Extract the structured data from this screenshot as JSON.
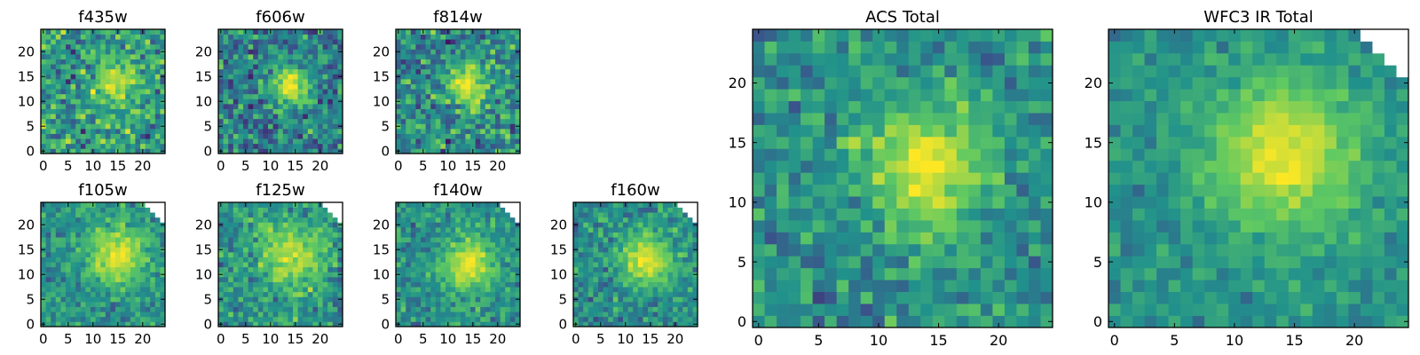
{
  "colors": {
    "background": "#ffffff",
    "axes": "#000000",
    "missing_pixel": "#ffffff",
    "colormap": "viridis",
    "colormap_anchors": [
      "#440154",
      "#3b528b",
      "#21918c",
      "#5ec962",
      "#fde725"
    ]
  },
  "chart_data": [
    {
      "type": "heatmap",
      "title": "f435w",
      "xlabel": "",
      "ylabel": "",
      "grid": false,
      "xlim": [
        0,
        24
      ],
      "ylim": [
        0,
        24
      ],
      "xticks": [
        0,
        5,
        10,
        15,
        20
      ],
      "yticks": [
        0,
        5,
        10,
        15,
        20
      ],
      "image_size": [
        25,
        25
      ],
      "peak": [
        15,
        14
      ],
      "peak_level": 0.95,
      "peak_spread": 3.0,
      "background_level": 0.55,
      "noise_level": 0.32,
      "mask_top_right": 0
    },
    {
      "type": "heatmap",
      "title": "f606w",
      "xlabel": "",
      "ylabel": "",
      "grid": false,
      "xlim": [
        0,
        24
      ],
      "ylim": [
        0,
        24
      ],
      "xticks": [
        0,
        5,
        10,
        15,
        20
      ],
      "yticks": [
        0,
        5,
        10,
        15,
        20
      ],
      "image_size": [
        25,
        25
      ],
      "peak": [
        14,
        13
      ],
      "peak_level": 0.97,
      "peak_spread": 2.8,
      "background_level": 0.42,
      "noise_level": 0.3,
      "mask_top_right": 0
    },
    {
      "type": "heatmap",
      "title": "f814w",
      "xlabel": "",
      "ylabel": "",
      "grid": false,
      "xlim": [
        0,
        24
      ],
      "ylim": [
        0,
        24
      ],
      "xticks": [
        0,
        5,
        10,
        15,
        20
      ],
      "yticks": [
        0,
        5,
        10,
        15,
        20
      ],
      "image_size": [
        25,
        25
      ],
      "peak": [
        14,
        13
      ],
      "peak_level": 0.95,
      "peak_spread": 3.0,
      "background_level": 0.48,
      "noise_level": 0.32,
      "mask_top_right": 0
    },
    {
      "type": "heatmap",
      "title": "f105w",
      "xlabel": "",
      "ylabel": "",
      "grid": false,
      "xlim": [
        0,
        24
      ],
      "ylim": [
        0,
        24
      ],
      "xticks": [
        0,
        5,
        10,
        15,
        20
      ],
      "yticks": [
        0,
        5,
        10,
        15,
        20
      ],
      "image_size": [
        25,
        25
      ],
      "peak": [
        15,
        14
      ],
      "peak_level": 0.97,
      "peak_spread": 4.2,
      "background_level": 0.5,
      "noise_level": 0.2,
      "mask_top_right": 4
    },
    {
      "type": "heatmap",
      "title": "f125w",
      "xlabel": "",
      "ylabel": "",
      "grid": false,
      "xlim": [
        0,
        24
      ],
      "ylim": [
        0,
        24
      ],
      "xticks": [
        0,
        5,
        10,
        15,
        20
      ],
      "yticks": [
        0,
        5,
        10,
        15,
        20
      ],
      "image_size": [
        25,
        25
      ],
      "peak": [
        14,
        14
      ],
      "peak_level": 0.88,
      "peak_spread": 5.0,
      "background_level": 0.5,
      "noise_level": 0.26,
      "mask_top_right": 4
    },
    {
      "type": "heatmap",
      "title": "f140w",
      "xlabel": "",
      "ylabel": "",
      "grid": false,
      "xlim": [
        0,
        24
      ],
      "ylim": [
        0,
        24
      ],
      "xticks": [
        0,
        5,
        10,
        15,
        20
      ],
      "yticks": [
        0,
        5,
        10,
        15,
        20
      ],
      "image_size": [
        25,
        25
      ],
      "peak": [
        14,
        12
      ],
      "peak_level": 0.97,
      "peak_spread": 3.8,
      "background_level": 0.5,
      "noise_level": 0.2,
      "mask_top_right": 4
    },
    {
      "type": "heatmap",
      "title": "f160w",
      "xlabel": "",
      "ylabel": "",
      "grid": false,
      "xlim": [
        0,
        24
      ],
      "ylim": [
        0,
        24
      ],
      "xticks": [
        0,
        5,
        10,
        15,
        20
      ],
      "yticks": [
        0,
        5,
        10,
        15,
        20
      ],
      "image_size": [
        25,
        25
      ],
      "peak": [
        14,
        13
      ],
      "peak_level": 0.95,
      "peak_spread": 3.8,
      "background_level": 0.48,
      "noise_level": 0.22,
      "mask_top_right": 4
    },
    {
      "type": "heatmap",
      "title": "ACS Total",
      "xlabel": "",
      "ylabel": "",
      "grid": false,
      "xlim": [
        0,
        24
      ],
      "ylim": [
        0,
        24
      ],
      "xticks": [
        0,
        5,
        10,
        15,
        20
      ],
      "yticks": [
        0,
        5,
        10,
        15,
        20
      ],
      "image_size": [
        25,
        25
      ],
      "peak": [
        14,
        13
      ],
      "peak_level": 0.98,
      "peak_spread": 3.6,
      "background_level": 0.5,
      "noise_level": 0.22,
      "mask_top_right": 0
    },
    {
      "type": "heatmap",
      "title": "WFC3 IR Total",
      "xlabel": "",
      "ylabel": "",
      "grid": false,
      "xlim": [
        0,
        24
      ],
      "ylim": [
        0,
        24
      ],
      "xticks": [
        0,
        5,
        10,
        15,
        20
      ],
      "yticks": [
        0,
        5,
        10,
        15,
        20
      ],
      "image_size": [
        25,
        25
      ],
      "peak": [
        14,
        14
      ],
      "peak_level": 0.97,
      "peak_spread": 4.6,
      "background_level": 0.5,
      "noise_level": 0.14,
      "mask_top_right": 4
    }
  ]
}
